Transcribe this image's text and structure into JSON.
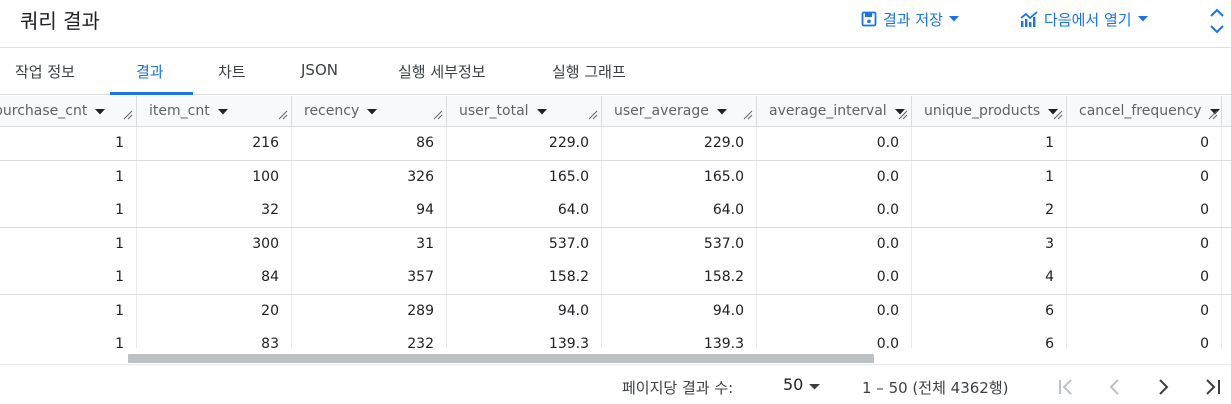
{
  "header": {
    "title": "쿼리 결과",
    "save_label": "결과 저장",
    "open_label": "다음에서 열기",
    "accent_color": "#1a73e8"
  },
  "tabs": [
    {
      "label": "작업 정보",
      "active": false
    },
    {
      "label": "결과",
      "active": true
    },
    {
      "label": "차트",
      "active": false
    },
    {
      "label": "JSON",
      "active": false
    },
    {
      "label": "실행 세부정보",
      "active": false
    },
    {
      "label": "실행 그래프",
      "active": false
    }
  ],
  "table": {
    "columns": [
      "purchase_cnt",
      "item_cnt",
      "recency",
      "user_total",
      "user_average",
      "average_interval",
      "unique_products",
      "cancel_frequency"
    ],
    "rows": [
      [
        "1",
        "216",
        "86",
        "229.0",
        "229.0",
        "0.0",
        "1",
        "0"
      ],
      [
        "1",
        "100",
        "326",
        "165.0",
        "165.0",
        "0.0",
        "1",
        "0"
      ],
      [
        "1",
        "32",
        "94",
        "64.0",
        "64.0",
        "0.0",
        "2",
        "0"
      ],
      [
        "1",
        "300",
        "31",
        "537.0",
        "537.0",
        "0.0",
        "3",
        "0"
      ],
      [
        "1",
        "84",
        "357",
        "158.2",
        "158.2",
        "0.0",
        "4",
        "0"
      ],
      [
        "1",
        "20",
        "289",
        "94.0",
        "94.0",
        "0.0",
        "6",
        "0"
      ],
      [
        "1",
        "83",
        "232",
        "139.3",
        "139.3",
        "0.0",
        "6",
        "0"
      ]
    ]
  },
  "footer": {
    "rows_per_page_label": "페이지당 결과 수:",
    "page_size": "50",
    "range_text": "1 – 50 (전체 4362행)"
  }
}
